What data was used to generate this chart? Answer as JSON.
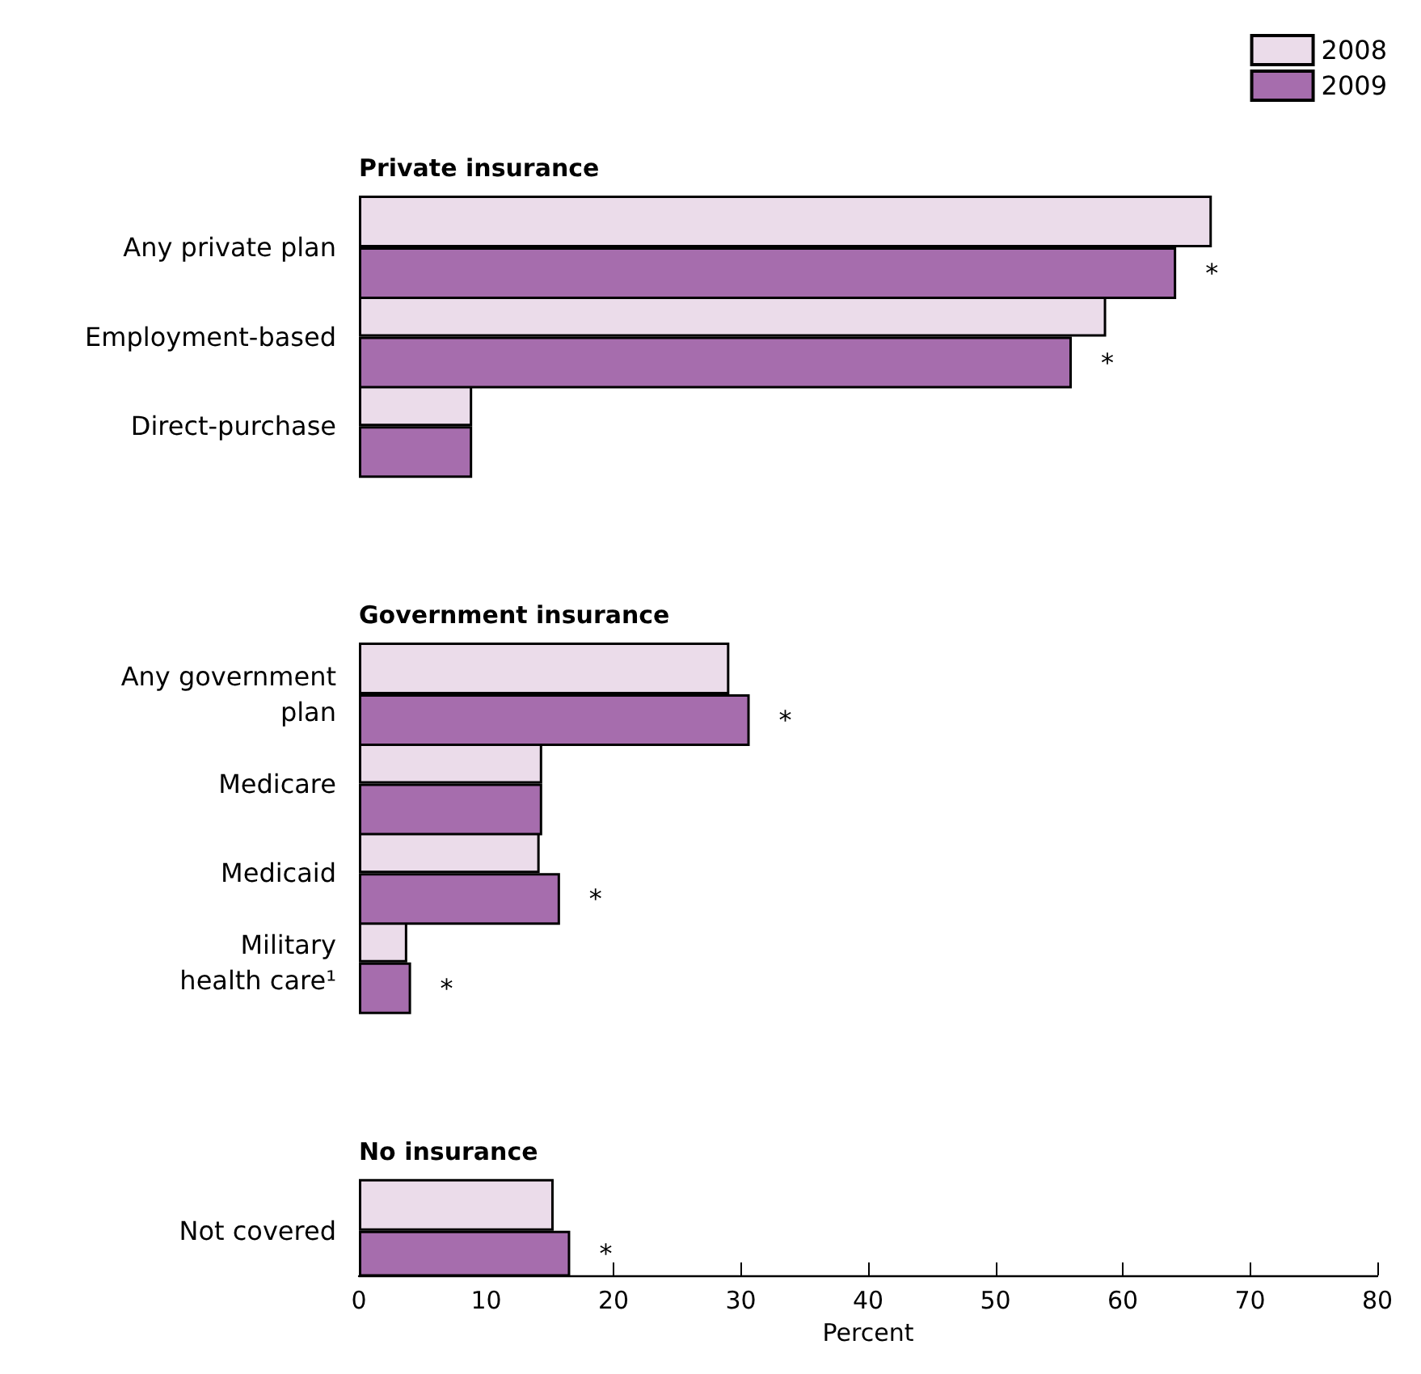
{
  "chart_data": {
    "type": "bar",
    "orientation": "horizontal",
    "categories": [
      "Private insurance",
      "Any private plan",
      "Employment-based",
      "Direct-purchase",
      null,
      "Government insurance",
      "Any government\nplan",
      "Medicare",
      "Medicaid",
      "Military\nhealth care¹",
      null,
      "No insurance",
      "Not covered"
    ],
    "series": [
      {
        "name": "2008",
        "color": "#ebdcea",
        "values": [
          null,
          67.0,
          58.7,
          8.9,
          null,
          null,
          29.1,
          14.4,
          14.2,
          3.8,
          null,
          null,
          15.3
        ]
      },
      {
        "name": "2009",
        "color": "#a66dad",
        "values": [
          null,
          64.2,
          56.0,
          8.9,
          null,
          null,
          30.7,
          14.4,
          15.8,
          4.1,
          null,
          null,
          16.6
        ],
        "value_labels": [
          null,
          "*",
          "*",
          null,
          null,
          null,
          "*",
          null,
          "*",
          "*",
          null,
          null,
          "*"
        ]
      }
    ],
    "xlim": [
      0,
      80
    ],
    "xticks": [
      0,
      10,
      20,
      30,
      40,
      50,
      60,
      70,
      80
    ],
    "xlabel": "Percent",
    "legend": "top right"
  }
}
